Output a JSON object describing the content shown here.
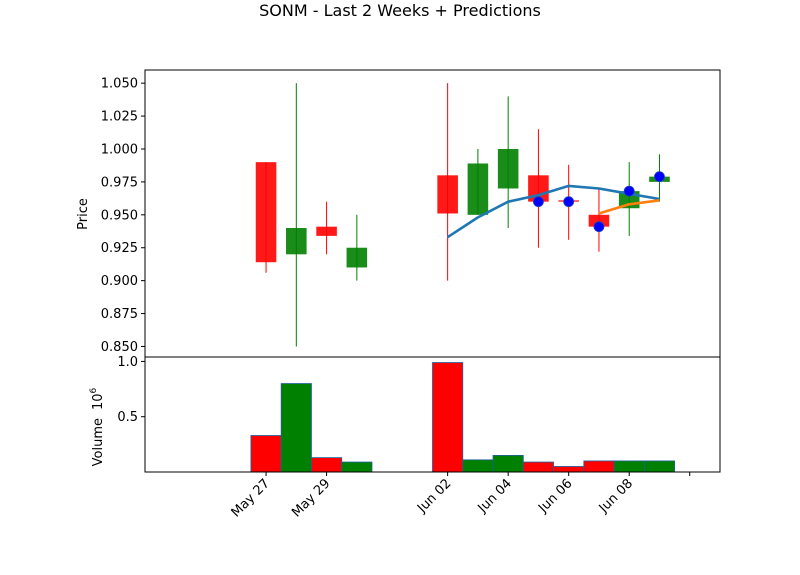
{
  "chart_data": {
    "type": "candlestick",
    "title": "SONM - Last 2 Weeks + Predictions",
    "colors": {
      "up": "#008000",
      "down": "#ff0000",
      "line1": "#1f77b4",
      "line2": "#ff7f0e",
      "marker": "#0000ff"
    },
    "candles": [
      {
        "date": "2018-05-27",
        "open": 0.99,
        "high": 0.99,
        "low": 0.906,
        "close": 0.914
      },
      {
        "date": "2018-05-28",
        "open": 0.92,
        "high": 1.05,
        "low": 0.85,
        "close": 0.94
      },
      {
        "date": "2018-05-29",
        "open": 0.941,
        "high": 0.96,
        "low": 0.92,
        "close": 0.934
      },
      {
        "date": "2018-05-30",
        "open": 0.91,
        "high": 0.95,
        "low": 0.9,
        "close": 0.925
      },
      {
        "date": "2018-06-02",
        "open": 0.98,
        "high": 1.05,
        "low": 0.9,
        "close": 0.951
      },
      {
        "date": "2018-06-03",
        "open": 0.95,
        "high": 1.0,
        "low": 0.95,
        "close": 0.989
      },
      {
        "date": "2018-06-04",
        "open": 0.97,
        "high": 1.04,
        "low": 0.94,
        "close": 1.0
      },
      {
        "date": "2018-06-05",
        "open": 0.98,
        "high": 1.015,
        "low": 0.925,
        "close": 0.96
      },
      {
        "date": "2018-06-06",
        "open": 0.961,
        "high": 0.988,
        "low": 0.931,
        "close": 0.96
      },
      {
        "date": "2018-06-07",
        "open": 0.95,
        "high": 0.97,
        "low": 0.922,
        "close": 0.941
      },
      {
        "date": "2018-06-08",
        "open": 0.955,
        "high": 0.99,
        "low": 0.934,
        "close": 0.968
      },
      {
        "date": "2018-06-09",
        "open": 0.975,
        "high": 0.996,
        "low": 0.96,
        "close": 0.979
      }
    ],
    "volume": [
      {
        "date": "2018-05-27",
        "value": 0.33,
        "direction": "down"
      },
      {
        "date": "2018-05-28",
        "value": 0.8,
        "direction": "up"
      },
      {
        "date": "2018-05-29",
        "value": 0.13,
        "direction": "down"
      },
      {
        "date": "2018-05-30",
        "value": 0.09,
        "direction": "up"
      },
      {
        "date": "2018-06-02",
        "value": 0.99,
        "direction": "down"
      },
      {
        "date": "2018-06-03",
        "value": 0.11,
        "direction": "up"
      },
      {
        "date": "2018-06-04",
        "value": 0.15,
        "direction": "up"
      },
      {
        "date": "2018-06-05",
        "value": 0.09,
        "direction": "down"
      },
      {
        "date": "2018-06-06",
        "value": 0.05,
        "direction": "down"
      },
      {
        "date": "2018-06-07",
        "value": 0.1,
        "direction": "down"
      },
      {
        "date": "2018-06-08",
        "value": 0.1,
        "direction": "up"
      },
      {
        "date": "2018-06-09",
        "value": 0.1,
        "direction": "up"
      }
    ],
    "line_blue": [
      {
        "date": "2018-06-02",
        "value": 0.933
      },
      {
        "date": "2018-06-03",
        "value": 0.948
      },
      {
        "date": "2018-06-04",
        "value": 0.96
      },
      {
        "date": "2018-06-05",
        "value": 0.965
      },
      {
        "date": "2018-06-06",
        "value": 0.972
      },
      {
        "date": "2018-06-07",
        "value": 0.97
      },
      {
        "date": "2018-06-08",
        "value": 0.966
      },
      {
        "date": "2018-06-09",
        "value": 0.962
      }
    ],
    "line_orange": [
      {
        "date": "2018-06-07",
        "value": 0.951
      },
      {
        "date": "2018-06-08",
        "value": 0.958
      },
      {
        "date": "2018-06-09",
        "value": 0.961
      }
    ],
    "markers": [
      {
        "date": "2018-06-05",
        "value": 0.96
      },
      {
        "date": "2018-06-06",
        "value": 0.96
      },
      {
        "date": "2018-06-07",
        "value": 0.941
      },
      {
        "date": "2018-06-08",
        "value": 0.968
      },
      {
        "date": "2018-06-09",
        "value": 0.979
      }
    ],
    "price_axis": {
      "ylabel": "Price",
      "ylim": [
        0.842,
        1.06
      ],
      "ticks": [
        0.85,
        0.875,
        0.9,
        0.925,
        0.95,
        0.975,
        1.0,
        1.025,
        1.05
      ],
      "tick_labels": [
        "0.850",
        "0.875",
        "0.900",
        "0.925",
        "0.950",
        "0.975",
        "1.000",
        "1.025",
        "1.050"
      ]
    },
    "volume_axis": {
      "ylabel": "Volume",
      "exponent": "10",
      "exponent_power": "6",
      "ylim": [
        0,
        1.04
      ],
      "ticks": [
        0.5,
        1.0
      ],
      "tick_labels": [
        "0.5",
        "1.0"
      ]
    },
    "x_axis": {
      "xlim": [
        "2018-05-23",
        "2018-06-11"
      ],
      "ticks": [
        "2018-05-27",
        "2018-05-29",
        "2018-06-02",
        "2018-06-04",
        "2018-06-06",
        "2018-06-08",
        "2018-06-10"
      ],
      "tick_labels": [
        "May 27",
        "May 29",
        "Jun 02",
        "Jun 04",
        "Jun 06",
        "Jun 08",
        ""
      ]
    }
  }
}
